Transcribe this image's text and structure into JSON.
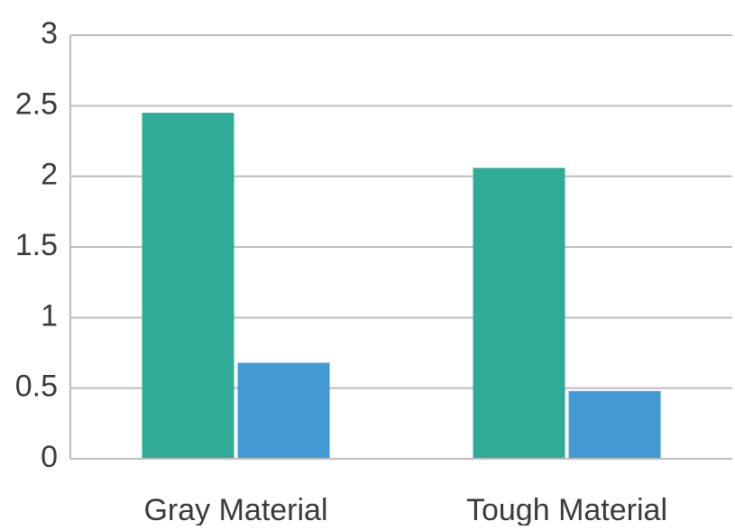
{
  "chart_data": {
    "type": "bar",
    "title": "",
    "xlabel": "",
    "ylabel": "",
    "categories": [
      "Gray Material",
      "Tough Material"
    ],
    "series": [
      {
        "values": [
          2.45,
          2.06
        ],
        "color": "#2fab97"
      },
      {
        "values": [
          0.68,
          0.48
        ],
        "color": "#4399d1"
      }
    ],
    "ylim": [
      0,
      3
    ],
    "yticks": [
      0,
      0.5,
      1,
      1.5,
      2,
      2.5,
      3
    ],
    "ytick_labels": [
      "0",
      "0.5",
      "1",
      "1.5",
      "2",
      "2.5",
      "3"
    ],
    "grid": true,
    "legend": "none"
  }
}
